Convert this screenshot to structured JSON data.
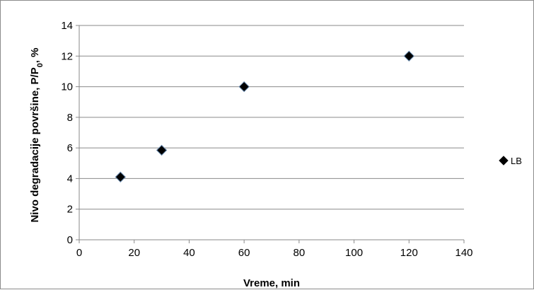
{
  "chart_data": {
    "type": "scatter",
    "title": "",
    "xlabel": "Vreme, min",
    "ylabel_parts": {
      "main": "Nivo degradacije  površine, P/P",
      "subscript": "0",
      "suffix": ", %"
    },
    "xlim": [
      0,
      140
    ],
    "ylim": [
      0,
      14
    ],
    "x_ticks": [
      0,
      20,
      40,
      60,
      80,
      100,
      120,
      140
    ],
    "y_ticks": [
      0,
      2,
      4,
      6,
      8,
      10,
      12,
      14
    ],
    "grid": {
      "horizontal": true,
      "vertical": false
    },
    "legend_position": "right",
    "series": [
      {
        "name": "LB",
        "marker": "diamond",
        "color": "#000000",
        "points": [
          {
            "x": 15,
            "y": 4.1
          },
          {
            "x": 30,
            "y": 5.85
          },
          {
            "x": 60,
            "y": 10
          },
          {
            "x": 120,
            "y": 12
          }
        ]
      }
    ]
  }
}
